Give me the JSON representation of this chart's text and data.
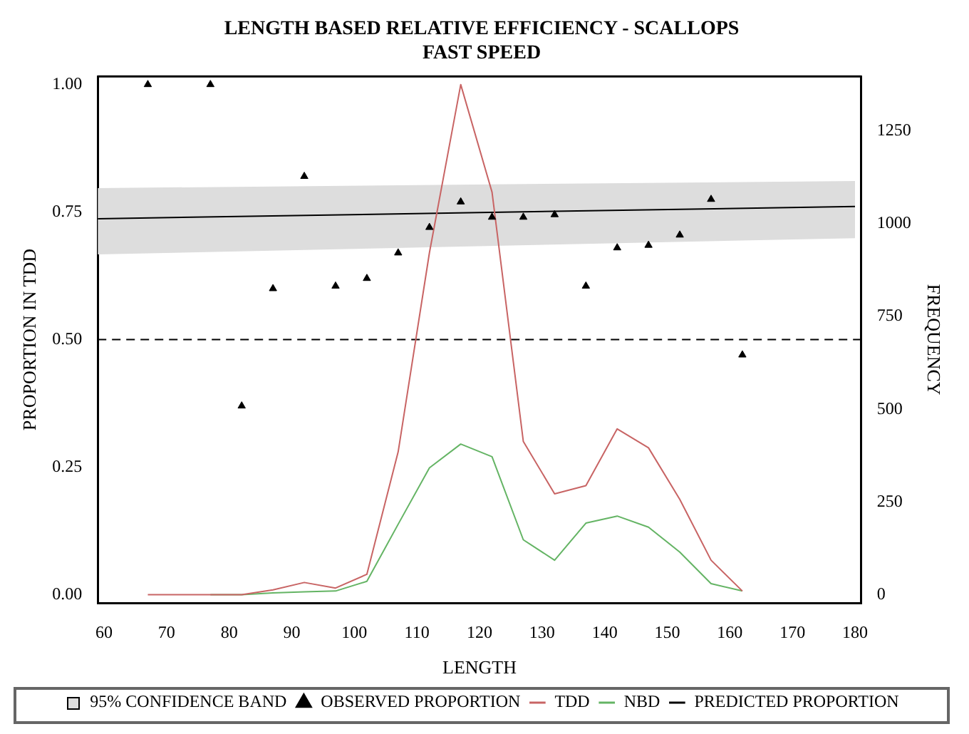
{
  "chart_data": {
    "type": "line",
    "title": "LENGTH BASED RELATIVE EFFICIENCY - SCALLOPS",
    "subtitle": "FAST SPEED",
    "xlabel": "LENGTH",
    "ylabel": "PROPORTION IN TDD",
    "y2label": "FREQUENCY",
    "xlim": [
      59,
      181
    ],
    "xticks": [
      60,
      70,
      80,
      90,
      100,
      110,
      120,
      130,
      140,
      150,
      160,
      170,
      180
    ],
    "ylim": [
      -0.016,
      1.016
    ],
    "yticks": [
      {
        "value": 0,
        "label": "0.00"
      },
      {
        "value": 0.25,
        "label": "0.25"
      },
      {
        "value": 0.5,
        "label": "0.50"
      },
      {
        "value": 0.75,
        "label": "0.75"
      },
      {
        "value": 1,
        "label": "1.00"
      }
    ],
    "y2lim": [
      -22,
      1397
    ],
    "y2ticks": [
      0,
      250,
      500,
      750,
      1000,
      1250
    ],
    "grid": false,
    "legend": "bottom",
    "annotations": [
      "95% CONFIDENCE BAND"
    ],
    "ref_lines": [
      {
        "axis": "y",
        "value": 0.5,
        "line_style": "dashed",
        "color": "#000000"
      }
    ],
    "series": [
      {
        "name": "OBSERVED PROPORTION",
        "type": "scatter",
        "marker": "triangle",
        "color": "#000000",
        "x": [
          67,
          77,
          82,
          87,
          92,
          97,
          102,
          107,
          112,
          117,
          122,
          127,
          132,
          137,
          142,
          147,
          152,
          157,
          162
        ],
        "values": [
          1.0,
          1.0,
          0.37,
          0.6,
          0.82,
          0.605,
          0.62,
          0.67,
          0.72,
          0.77,
          0.74,
          0.74,
          0.745,
          0.605,
          0.68,
          0.685,
          0.705,
          0.775,
          0.47
        ]
      },
      {
        "name": "TDD",
        "type": "line",
        "axis": "y2",
        "marker": "none",
        "color": "#c86464",
        "x": [
          67,
          72,
          77,
          82,
          87,
          92,
          97,
          102,
          107,
          112,
          117,
          122,
          127,
          132,
          137,
          142,
          147,
          152,
          157,
          162
        ],
        "values": [
          0,
          0,
          0,
          0,
          13,
          33,
          18,
          55,
          385,
          922,
          1375,
          1085,
          413,
          272,
          294,
          447,
          396,
          257,
          93,
          10
        ]
      },
      {
        "name": "NBD",
        "type": "line",
        "axis": "y2",
        "marker": "none",
        "color": "#64b464",
        "x": [
          77,
          82,
          87,
          92,
          97,
          102,
          107,
          112,
          117,
          122,
          127,
          132,
          137,
          142,
          147,
          152,
          157,
          162
        ],
        "values": [
          0,
          0,
          5,
          8,
          10,
          36,
          190,
          342,
          406,
          372,
          148,
          93,
          193,
          212,
          182,
          115,
          30,
          10
        ]
      },
      {
        "name": "PREDICTED PROPORTION",
        "type": "line",
        "marker": "none",
        "color": "#000000",
        "x": [
          59,
          180
        ],
        "values": [
          0.737,
          0.761
        ],
        "lower": [
          0.667,
          0.699
        ],
        "upper": [
          0.797,
          0.811
        ]
      }
    ]
  }
}
